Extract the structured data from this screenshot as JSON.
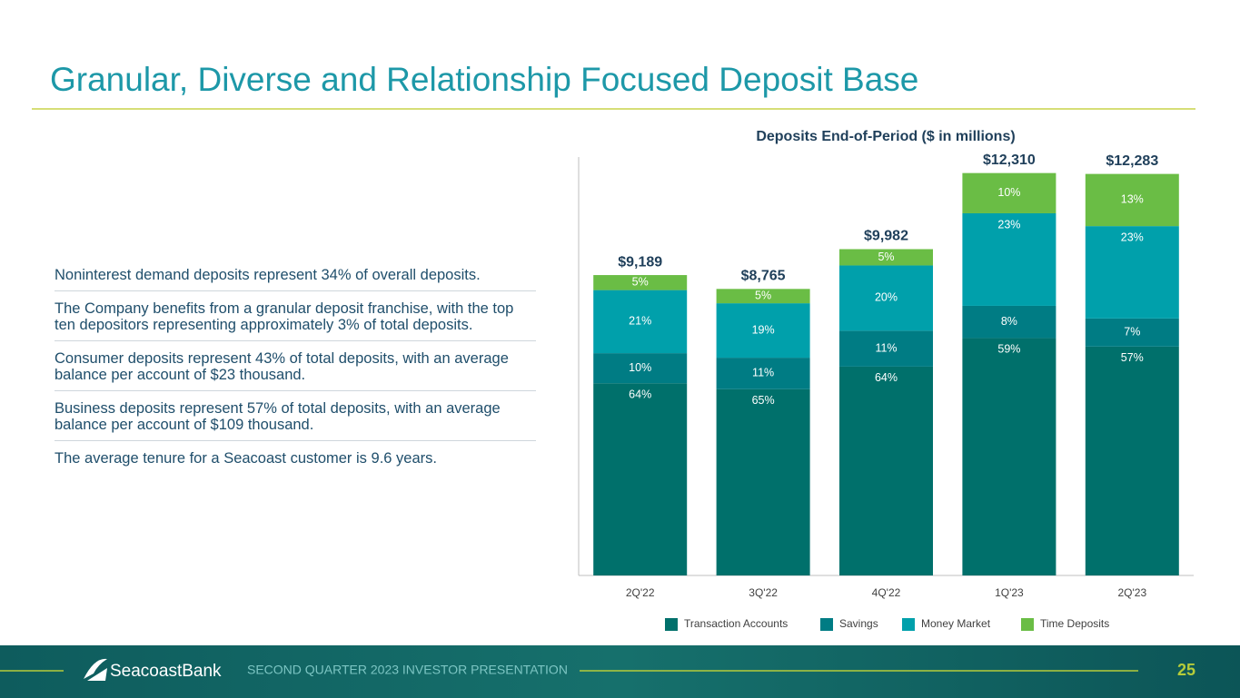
{
  "title": "Granular, Diverse and Relationship Focused Deposit Base",
  "bullets": [
    "Noninterest demand deposits represent 34% of overall deposits.",
    "The Company benefits from a granular deposit franchise, with the top ten depositors representing approximately 3% of total deposits.",
    "Consumer deposits represent 43% of total deposits, with an average balance per account of $23 thousand.",
    "Business deposits represent 57% of total deposits, with an average balance per account of $109 thousand.",
    "The average tenure for a Seacoast customer is 9.6 years."
  ],
  "chart_data": {
    "type": "stacked_bar",
    "title": "Deposits End-of-Period ($ in millions)",
    "categories": [
      "2Q'22",
      "3Q'22",
      "4Q'22",
      "1Q'23",
      "2Q'23"
    ],
    "totals": {
      "values": [
        9189,
        8765,
        9982,
        12310,
        12283
      ],
      "value_labels": [
        "$9,189",
        "$8,765",
        "$9,982",
        "$12,310",
        "$12,283"
      ]
    },
    "series": [
      {
        "name": "Transaction Accounts",
        "color": "#00706b",
        "values": [
          64,
          65,
          64,
          59,
          57
        ],
        "value_labels": [
          "64%",
          "65%",
          "64%",
          "59%",
          "57%"
        ]
      },
      {
        "name": "Savings",
        "color": "#007c84",
        "values": [
          10,
          11,
          11,
          8,
          7
        ],
        "value_labels": [
          "10%",
          "11%",
          "11%",
          "8%",
          "7%"
        ]
      },
      {
        "name": "Money Market",
        "color": "#00a0ab",
        "values": [
          21,
          19,
          20,
          23,
          23
        ],
        "value_labels": [
          "21%",
          "19%",
          "20%",
          "23%",
          "23%"
        ]
      },
      {
        "name": "Time Deposits",
        "color": "#6abd45",
        "values": [
          5,
          5,
          5,
          10,
          13
        ],
        "value_labels": [
          "5%",
          "5%",
          "5%",
          "10%",
          "13%"
        ]
      }
    ],
    "ylim": [
      0,
      12800
    ],
    "legend": "bottom"
  },
  "footer": {
    "brand": "SeacoastBank",
    "presentation": "SECOND QUARTER 2023 INVESTOR PRESENTATION",
    "page": "25"
  }
}
